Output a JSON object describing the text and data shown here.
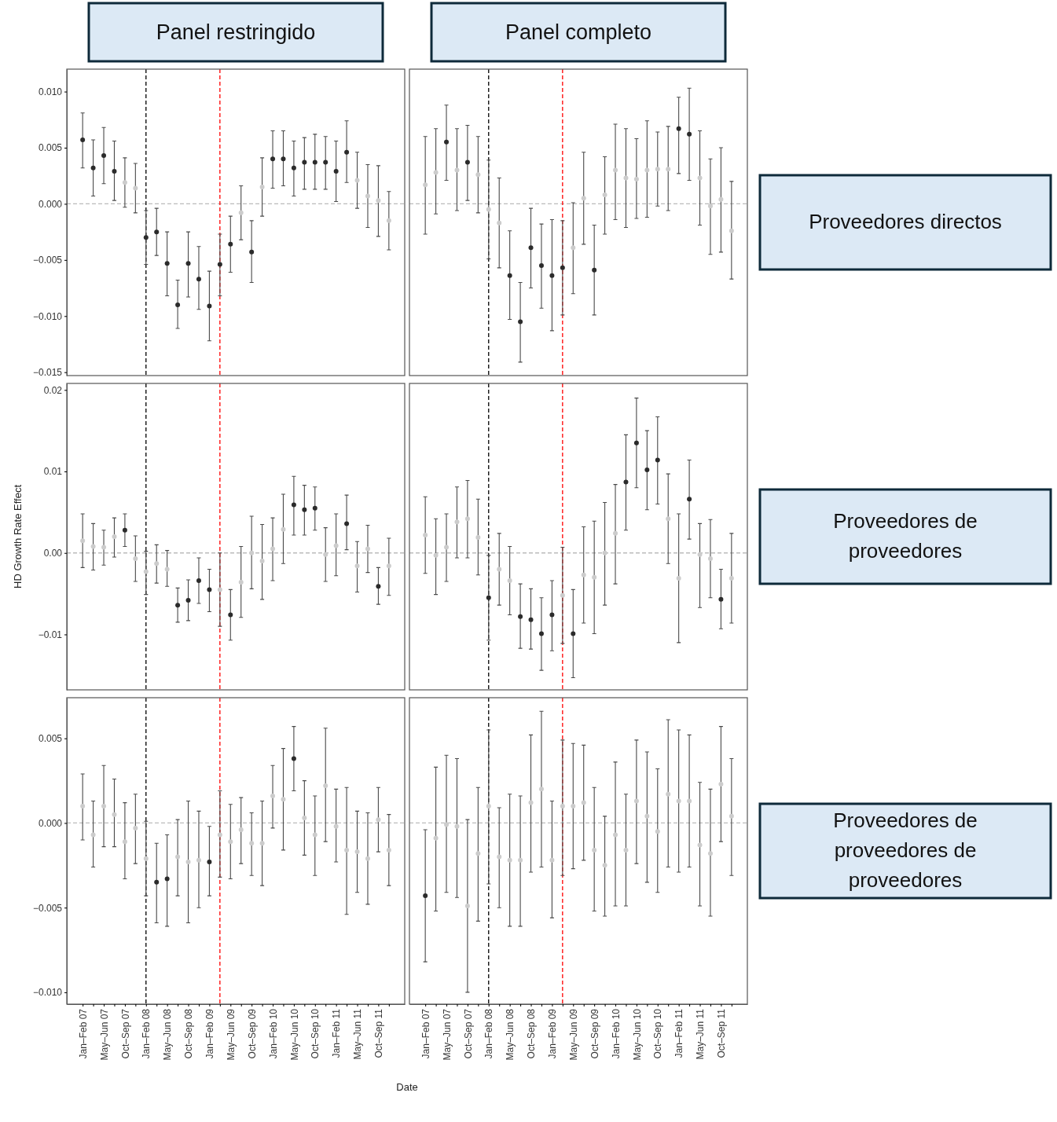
{
  "chart_data": [
    {
      "type": "scatter",
      "title": "Panel restringido",
      "marker": "circle",
      "tick_labels": "y",
      "x": [
        "2007-01",
        "2007-03",
        "2007-05",
        "2007-07",
        "2007-09",
        "2007-11",
        "2008-01",
        "2008-03",
        "2008-05",
        "2008-07",
        "2008-09",
        "2008-11",
        "2009-01",
        "2009-03",
        "2009-05",
        "2009-07",
        "2009-09",
        "2009-11",
        "2010-01",
        "2010-03",
        "2010-05",
        "2010-07",
        "2010-09",
        "2010-11",
        "2011-01",
        "2011-03",
        "2011-05",
        "2011-07",
        "2011-09",
        "2011-11"
      ],
      "xlim": [
        "2006-10",
        "2012-02"
      ],
      "ylim": [
        -0.0153,
        0.012
      ],
      "yticks": [
        {
          "value": -0.015,
          "label": "−0.015"
        },
        {
          "value": -0.01,
          "label": "−0.010"
        },
        {
          "value": -0.005,
          "label": "−0.005"
        },
        {
          "value": 0,
          "label": "0.000"
        },
        {
          "value": 0.005,
          "label": "0.005"
        },
        {
          "value": 0.01,
          "label": "0.010"
        }
      ],
      "ref_lines": [
        {
          "axis": "y",
          "value": 0,
          "color": "#bbbbbb",
          "line_style": "dashed"
        },
        {
          "axis": "x",
          "value": "2008-01",
          "color": "#000000",
          "line_style": "dashed"
        },
        {
          "axis": "x",
          "value": "2009-03",
          "color": "#ff0000",
          "line_style": "dashed"
        }
      ],
      "values": [
        0.0057,
        0.0032,
        0.0043,
        0.0029,
        0.0019,
        0.0014,
        -0.003,
        -0.0025,
        -0.0053,
        -0.009,
        -0.0053,
        -0.0067,
        -0.0091,
        -0.0054,
        -0.0036,
        -0.0008,
        -0.0043,
        0.0015,
        0.004,
        0.004,
        0.0032,
        0.0037,
        0.0037,
        0.0037,
        0.0029,
        0.0046,
        0.0021,
        0.0007,
        0.0003,
        -0.0015
      ],
      "errors": [
        [
          0.0032,
          0.0081
        ],
        [
          0.0007,
          0.0057
        ],
        [
          0.0018,
          0.0068
        ],
        [
          0.0003,
          0.0056
        ],
        [
          -0.0003,
          0.0041
        ],
        [
          -0.0008,
          0.0036
        ],
        [
          -0.0054,
          -0.0006
        ],
        [
          -0.0046,
          -0.0004
        ],
        [
          -0.0082,
          -0.0025
        ],
        [
          -0.0111,
          -0.0068
        ],
        [
          -0.0083,
          -0.0025
        ],
        [
          -0.0094,
          -0.0038
        ],
        [
          -0.0122,
          -0.006
        ],
        [
          -0.0082,
          -0.0027
        ],
        [
          -0.0061,
          -0.0011
        ],
        [
          -0.0032,
          0.0016
        ],
        [
          -0.007,
          -0.0015
        ],
        [
          -0.0011,
          0.0041
        ],
        [
          0.0014,
          0.0065
        ],
        [
          0.0016,
          0.0065
        ],
        [
          0.0007,
          0.0056
        ],
        [
          0.0013,
          0.0059
        ],
        [
          0.0013,
          0.0062
        ],
        [
          0.0013,
          0.006
        ],
        [
          0.0002,
          0.0056
        ],
        [
          0.0019,
          0.0074
        ],
        [
          -0.0004,
          0.0046
        ],
        [
          -0.0021,
          0.0035
        ],
        [
          -0.0029,
          0.0034
        ],
        [
          -0.0041,
          0.0011
        ]
      ],
      "colors": [
        "#2b2b2b",
        "#2b2b2b",
        "#2b2b2b",
        "#2b2b2b",
        "#cccccc",
        "#cccccc",
        "#2b2b2b",
        "#2b2b2b",
        "#2b2b2b",
        "#2b2b2b",
        "#2b2b2b",
        "#2b2b2b",
        "#2b2b2b",
        "#2b2b2b",
        "#2b2b2b",
        "#cccccc",
        "#2b2b2b",
        "#cccccc",
        "#2b2b2b",
        "#2b2b2b",
        "#2b2b2b",
        "#2b2b2b",
        "#2b2b2b",
        "#2b2b2b",
        "#2b2b2b",
        "#2b2b2b",
        "#cccccc",
        "#cccccc",
        "#cccccc",
        "#cccccc"
      ]
    },
    {
      "type": "scatter",
      "title": "Panel completo",
      "annotations": [
        "Proveedores directos"
      ],
      "marker": "circle",
      "tick_labels": false,
      "x": [
        "2007-01",
        "2007-03",
        "2007-05",
        "2007-07",
        "2007-09",
        "2007-11",
        "2008-01",
        "2008-03",
        "2008-05",
        "2008-07",
        "2008-09",
        "2008-11",
        "2009-01",
        "2009-03",
        "2009-05",
        "2009-07",
        "2009-09",
        "2009-11",
        "2010-01",
        "2010-03",
        "2010-05",
        "2010-07",
        "2010-09",
        "2010-11",
        "2011-01",
        "2011-03",
        "2011-05",
        "2011-07",
        "2011-09",
        "2011-11"
      ],
      "xlim": [
        "2006-10",
        "2012-02"
      ],
      "ylim": [
        -0.0153,
        0.012
      ],
      "ref_lines": [
        {
          "axis": "y",
          "value": 0,
          "color": "#bbbbbb",
          "line_style": "dashed"
        },
        {
          "axis": "x",
          "value": "2008-01",
          "color": "#000000",
          "line_style": "dashed"
        },
        {
          "axis": "x",
          "value": "2009-03",
          "color": "#ff0000",
          "line_style": "dashed"
        }
      ],
      "values": [
        0.0017,
        0.0028,
        0.0055,
        0.003,
        0.0037,
        0.0026,
        -0.0005,
        -0.0017,
        -0.0064,
        -0.0105,
        -0.0039,
        -0.0055,
        -0.0064,
        -0.0057,
        -0.0039,
        0.0005,
        -0.0059,
        0.0008,
        0.003,
        0.0023,
        0.0022,
        0.003,
        0.0031,
        0.0031,
        0.0067,
        0.0062,
        0.0023,
        -0.0002,
        0.0004,
        -0.0024
      ],
      "errors": [
        [
          -0.0027,
          0.006
        ],
        [
          -0.0009,
          0.0067
        ],
        [
          0.0021,
          0.0088
        ],
        [
          -0.0006,
          0.0067
        ],
        [
          0.0003,
          0.007
        ],
        [
          -0.0008,
          0.006
        ],
        [
          -0.0049,
          0.0039
        ],
        [
          -0.0057,
          0.0023
        ],
        [
          -0.0103,
          -0.0024
        ],
        [
          -0.0141,
          -0.007
        ],
        [
          -0.0075,
          -0.0004
        ],
        [
          -0.0093,
          -0.0018
        ],
        [
          -0.0113,
          -0.0014
        ],
        [
          -0.0099,
          -0.0015
        ],
        [
          -0.008,
          0.0001
        ],
        [
          -0.0036,
          0.0046
        ],
        [
          -0.0099,
          -0.0019
        ],
        [
          -0.0027,
          0.0042
        ],
        [
          -0.0014,
          0.0071
        ],
        [
          -0.0021,
          0.0067
        ],
        [
          -0.0013,
          0.0058
        ],
        [
          -0.0012,
          0.0074
        ],
        [
          -0.0002,
          0.0064
        ],
        [
          -0.0006,
          0.0069
        ],
        [
          0.0027,
          0.0095
        ],
        [
          0.0021,
          0.0103
        ],
        [
          -0.0019,
          0.0065
        ],
        [
          -0.0045,
          0.004
        ],
        [
          -0.0043,
          0.005
        ],
        [
          -0.0067,
          0.002
        ]
      ],
      "colors": [
        "#cccccc",
        "#cccccc",
        "#2b2b2b",
        "#cccccc",
        "#2b2b2b",
        "#cccccc",
        "#cccccc",
        "#cccccc",
        "#2b2b2b",
        "#2b2b2b",
        "#2b2b2b",
        "#2b2b2b",
        "#2b2b2b",
        "#2b2b2b",
        "#cccccc",
        "#cccccc",
        "#2b2b2b",
        "#cccccc",
        "#cccccc",
        "#cccccc",
        "#cccccc",
        "#cccccc",
        "#cccccc",
        "#cccccc",
        "#2b2b2b",
        "#2b2b2b",
        "#cccccc",
        "#cccccc",
        "#cccccc",
        "#cccccc"
      ]
    },
    {
      "type": "scatter",
      "ylabel": "HD Growth Rate Effect",
      "marker": "circle",
      "tick_labels": "y",
      "x": [
        "2007-01",
        "2007-03",
        "2007-05",
        "2007-07",
        "2007-09",
        "2007-11",
        "2008-01",
        "2008-03",
        "2008-05",
        "2008-07",
        "2008-09",
        "2008-11",
        "2009-01",
        "2009-03",
        "2009-05",
        "2009-07",
        "2009-09",
        "2009-11",
        "2010-01",
        "2010-03",
        "2010-05",
        "2010-07",
        "2010-09",
        "2010-11",
        "2011-01",
        "2011-03",
        "2011-05",
        "2011-07",
        "2011-09",
        "2011-11"
      ],
      "xlim": [
        "2006-10",
        "2012-02"
      ],
      "ylim": [
        -0.0168,
        0.0208
      ],
      "yticks": [
        {
          "value": -0.01,
          "label": "−0.01"
        },
        {
          "value": 0,
          "label": "0.00"
        },
        {
          "value": 0.01,
          "label": "0.01"
        },
        {
          "value": 0.02,
          "label": "0.02"
        }
      ],
      "ref_lines": [
        {
          "axis": "y",
          "value": 0,
          "color": "#bbbbbb",
          "line_style": "dashed"
        },
        {
          "axis": "x",
          "value": "2008-01",
          "color": "#000000",
          "line_style": "dashed"
        },
        {
          "axis": "x",
          "value": "2009-03",
          "color": "#ff0000",
          "line_style": "dashed"
        }
      ],
      "values": [
        0.0015,
        0.0008,
        0.0007,
        0.002,
        0.0028,
        -0.0007,
        -0.0023,
        -0.0013,
        -0.002,
        -0.0064,
        -0.0058,
        -0.0034,
        -0.0045,
        -0.0045,
        -0.0076,
        -0.0036,
        0,
        -0.001,
        0.0005,
        0.0029,
        0.0059,
        0.0053,
        0.0055,
        -0.0002,
        0.0009,
        0.0036,
        -0.0016,
        0.0005,
        -0.0041,
        -0.0016
      ],
      "errors": [
        [
          -0.0018,
          0.0048
        ],
        [
          -0.0021,
          0.0036
        ],
        [
          -0.0015,
          0.0028
        ],
        [
          -0.0005,
          0.0043
        ],
        [
          0.0008,
          0.0048
        ],
        [
          -0.0035,
          0.0021
        ],
        [
          -0.0051,
          0.0002
        ],
        [
          -0.0037,
          0.001
        ],
        [
          -0.0041,
          0.0003
        ],
        [
          -0.0085,
          -0.0043
        ],
        [
          -0.0083,
          -0.0033
        ],
        [
          -0.0062,
          -0.0006
        ],
        [
          -0.0072,
          -0.002
        ],
        [
          -0.009,
          0
        ],
        [
          -0.0107,
          -0.0045
        ],
        [
          -0.0079,
          0.0008
        ],
        [
          -0.0044,
          0.0045
        ],
        [
          -0.0057,
          0.0035
        ],
        [
          -0.0034,
          0.0043
        ],
        [
          -0.0013,
          0.0072
        ],
        [
          0.0022,
          0.0094
        ],
        [
          0.0022,
          0.0083
        ],
        [
          0.0028,
          0.0081
        ],
        [
          -0.0035,
          0.0031
        ],
        [
          -0.0028,
          0.0048
        ],
        [
          0.0004,
          0.0071
        ],
        [
          -0.0048,
          0.0014
        ],
        [
          -0.0024,
          0.0034
        ],
        [
          -0.0063,
          -0.0018
        ],
        [
          -0.0052,
          0.0018
        ]
      ],
      "colors": [
        "#cccccc",
        "#cccccc",
        "#cccccc",
        "#cccccc",
        "#2b2b2b",
        "#cccccc",
        "#cccccc",
        "#cccccc",
        "#cccccc",
        "#2b2b2b",
        "#2b2b2b",
        "#2b2b2b",
        "#2b2b2b",
        "#cccccc",
        "#2b2b2b",
        "#cccccc",
        "#cccccc",
        "#cccccc",
        "#cccccc",
        "#cccccc",
        "#2b2b2b",
        "#2b2b2b",
        "#2b2b2b",
        "#cccccc",
        "#cccccc",
        "#2b2b2b",
        "#cccccc",
        "#cccccc",
        "#2b2b2b",
        "#cccccc"
      ]
    },
    {
      "type": "scatter",
      "annotations": [
        "Proveedores de proveedores"
      ],
      "marker": "circle",
      "tick_labels": false,
      "x": [
        "2007-01",
        "2007-03",
        "2007-05",
        "2007-07",
        "2007-09",
        "2007-11",
        "2008-01",
        "2008-03",
        "2008-05",
        "2008-07",
        "2008-09",
        "2008-11",
        "2009-01",
        "2009-03",
        "2009-05",
        "2009-07",
        "2009-09",
        "2009-11",
        "2010-01",
        "2010-03",
        "2010-05",
        "2010-07",
        "2010-09",
        "2010-11",
        "2011-01",
        "2011-03",
        "2011-05",
        "2011-07",
        "2011-09",
        "2011-11"
      ],
      "xlim": [
        "2006-10",
        "2012-02"
      ],
      "ylim": [
        -0.0168,
        0.0208
      ],
      "ref_lines": [
        {
          "axis": "y",
          "value": 0,
          "color": "#bbbbbb",
          "line_style": "dashed"
        },
        {
          "axis": "x",
          "value": "2008-01",
          "color": "#000000",
          "line_style": "dashed"
        },
        {
          "axis": "x",
          "value": "2009-03",
          "color": "#ff0000",
          "line_style": "dashed"
        }
      ],
      "values": [
        0.0022,
        -0.0003,
        0.0007,
        0.0038,
        0.0042,
        0.0019,
        -0.0055,
        -0.002,
        -0.0034,
        -0.0078,
        -0.0082,
        -0.0099,
        -0.0076,
        -0.0052,
        -0.0099,
        -0.0027,
        -0.003,
        0,
        0.0024,
        0.0087,
        0.0135,
        0.0102,
        0.0114,
        0.0042,
        -0.0031,
        0.0066,
        -0.0002,
        -0.0007,
        -0.0057,
        -0.0031
      ],
      "errors": [
        [
          -0.0025,
          0.0069
        ],
        [
          -0.0051,
          0.0042
        ],
        [
          -0.0035,
          0.0048
        ],
        [
          -0.0006,
          0.0081
        ],
        [
          -0.0006,
          0.0089
        ],
        [
          -0.0027,
          0.0066
        ],
        [
          -0.0107,
          -0.0003
        ],
        [
          -0.0064,
          0.0024
        ],
        [
          -0.0076,
          0.0008
        ],
        [
          -0.0117,
          -0.0038
        ],
        [
          -0.0118,
          -0.0044
        ],
        [
          -0.0144,
          -0.0055
        ],
        [
          -0.012,
          -0.0034
        ],
        [
          -0.0111,
          0.0007
        ],
        [
          -0.0153,
          -0.0045
        ],
        [
          -0.0086,
          0.0032
        ],
        [
          -0.0099,
          0.0039
        ],
        [
          -0.0064,
          0.0062
        ],
        [
          -0.0038,
          0.0084
        ],
        [
          0.0028,
          0.0145
        ],
        [
          0.008,
          0.019
        ],
        [
          0.0053,
          0.015
        ],
        [
          0.006,
          0.0167
        ],
        [
          -0.0013,
          0.0097
        ],
        [
          -0.011,
          0.0048
        ],
        [
          0.0017,
          0.0114
        ],
        [
          -0.0067,
          0.0036
        ],
        [
          -0.0055,
          0.0041
        ],
        [
          -0.0093,
          -0.002
        ],
        [
          -0.0086,
          0.0024
        ]
      ],
      "colors": [
        "#cccccc",
        "#cccccc",
        "#cccccc",
        "#cccccc",
        "#cccccc",
        "#cccccc",
        "#2b2b2b",
        "#cccccc",
        "#cccccc",
        "#2b2b2b",
        "#2b2b2b",
        "#2b2b2b",
        "#2b2b2b",
        "#cccccc",
        "#2b2b2b",
        "#cccccc",
        "#cccccc",
        "#cccccc",
        "#cccccc",
        "#2b2b2b",
        "#2b2b2b",
        "#2b2b2b",
        "#2b2b2b",
        "#cccccc",
        "#cccccc",
        "#2b2b2b",
        "#cccccc",
        "#cccccc",
        "#2b2b2b",
        "#cccccc"
      ]
    },
    {
      "type": "scatter",
      "xlabel": "Date",
      "marker": "circle",
      "x": [
        "2007-01",
        "2007-03",
        "2007-05",
        "2007-07",
        "2007-09",
        "2007-11",
        "2008-01",
        "2008-03",
        "2008-05",
        "2008-07",
        "2008-09",
        "2008-11",
        "2009-01",
        "2009-03",
        "2009-05",
        "2009-07",
        "2009-09",
        "2009-11",
        "2010-01",
        "2010-03",
        "2010-05",
        "2010-07",
        "2010-09",
        "2010-11",
        "2011-01",
        "2011-03",
        "2011-05",
        "2011-07",
        "2011-09",
        "2011-11"
      ],
      "xlim": [
        "2006-10",
        "2012-02"
      ],
      "ylim": [
        -0.0107,
        0.0074
      ],
      "xticks": [
        {
          "value": "2007-01",
          "label": "Jan–Feb 07"
        },
        {
          "value": "2007-03",
          "label": null
        },
        {
          "value": "2007-05",
          "label": "May–Jun 07"
        },
        {
          "value": "2007-07",
          "label": null
        },
        {
          "value": "2007-09",
          "label": "Oct–Sep 07"
        },
        {
          "value": "2007-11",
          "label": null
        },
        {
          "value": "2008-01",
          "label": "Jan–Feb 08"
        },
        {
          "value": "2008-03",
          "label": null
        },
        {
          "value": "2008-05",
          "label": "May–Jun 08"
        },
        {
          "value": "2008-07",
          "label": null
        },
        {
          "value": "2008-09",
          "label": "Oct–Sep 08"
        },
        {
          "value": "2008-11",
          "label": null
        },
        {
          "value": "2009-01",
          "label": "Jan–Feb 09"
        },
        {
          "value": "2009-03",
          "label": null
        },
        {
          "value": "2009-05",
          "label": "May–Jun 09"
        },
        {
          "value": "2009-07",
          "label": null
        },
        {
          "value": "2009-09",
          "label": "Oct–Sep 09"
        },
        {
          "value": "2009-11",
          "label": null
        },
        {
          "value": "2010-01",
          "label": "Jan–Feb 10"
        },
        {
          "value": "2010-03",
          "label": null
        },
        {
          "value": "2010-05",
          "label": "May–Jun 10"
        },
        {
          "value": "2010-07",
          "label": null
        },
        {
          "value": "2010-09",
          "label": "Oct–Sep 10"
        },
        {
          "value": "2010-11",
          "label": null
        },
        {
          "value": "2011-01",
          "label": "Jan–Feb 11"
        },
        {
          "value": "2011-03",
          "label": null
        },
        {
          "value": "2011-05",
          "label": "May–Jun 11"
        },
        {
          "value": "2011-07",
          "label": null
        },
        {
          "value": "2011-09",
          "label": "Oct–Sep 11"
        },
        {
          "value": "2011-11",
          "label": null
        }
      ],
      "yticks": [
        {
          "value": -0.01,
          "label": "−0.010"
        },
        {
          "value": -0.005,
          "label": "−0.005"
        },
        {
          "value": 0,
          "label": "0.000"
        },
        {
          "value": 0.005,
          "label": "0.005"
        }
      ],
      "ref_lines": [
        {
          "axis": "y",
          "value": 0,
          "color": "#bbbbbb",
          "line_style": "dashed"
        },
        {
          "axis": "x",
          "value": "2008-01",
          "color": "#000000",
          "line_style": "dashed"
        },
        {
          "axis": "x",
          "value": "2009-03",
          "color": "#ff0000",
          "line_style": "dashed"
        }
      ],
      "values": [
        0.001,
        -0.0007,
        0.001,
        0.0005,
        -0.0011,
        -0.0003,
        -0.0021,
        -0.0035,
        -0.0033,
        -0.002,
        -0.0023,
        -0.0022,
        -0.0023,
        -0.0007,
        -0.0011,
        -0.0004,
        -0.0012,
        -0.0012,
        0.0016,
        0.0014,
        0.0038,
        0.0003,
        -0.0007,
        0.0022,
        -0.0002,
        -0.0016,
        -0.0017,
        -0.0021,
        0.0002,
        -0.0016
      ],
      "errors": [
        [
          -0.001,
          0.0029
        ],
        [
          -0.0026,
          0.0013
        ],
        [
          -0.0014,
          0.0034
        ],
        [
          -0.0014,
          0.0026
        ],
        [
          -0.0033,
          0.0012
        ],
        [
          -0.0024,
          0.0017
        ],
        [
          -0.0043,
          0.0001
        ],
        [
          -0.0059,
          -0.0012
        ],
        [
          -0.0061,
          -0.0007
        ],
        [
          -0.0043,
          0.0002
        ],
        [
          -0.0059,
          0.0013
        ],
        [
          -0.005,
          0.0007
        ],
        [
          -0.0043,
          -0.0002
        ],
        [
          -0.0032,
          0.0019
        ],
        [
          -0.0033,
          0.0011
        ],
        [
          -0.0024,
          0.0015
        ],
        [
          -0.0031,
          0.0006
        ],
        [
          -0.0037,
          0.0013
        ],
        [
          -0.0003,
          0.0034
        ],
        [
          -0.0016,
          0.0044
        ],
        [
          0.0019,
          0.0057
        ],
        [
          -0.0019,
          0.0025
        ],
        [
          -0.0031,
          0.0016
        ],
        [
          -0.0011,
          0.0056
        ],
        [
          -0.0023,
          0.002
        ],
        [
          -0.0054,
          0.0021
        ],
        [
          -0.0041,
          0.0007
        ],
        [
          -0.0048,
          0.0006
        ],
        [
          -0.0017,
          0.0021
        ],
        [
          -0.0037,
          0.0005
        ]
      ],
      "colors": [
        "#cccccc",
        "#cccccc",
        "#cccccc",
        "#cccccc",
        "#cccccc",
        "#cccccc",
        "#cccccc",
        "#2b2b2b",
        "#2b2b2b",
        "#cccccc",
        "#cccccc",
        "#cccccc",
        "#2b2b2b",
        "#cccccc",
        "#cccccc",
        "#cccccc",
        "#cccccc",
        "#cccccc",
        "#cccccc",
        "#cccccc",
        "#2b2b2b",
        "#cccccc",
        "#cccccc",
        "#cccccc",
        "#cccccc",
        "#cccccc",
        "#cccccc",
        "#cccccc",
        "#cccccc",
        "#cccccc"
      ]
    },
    {
      "type": "scatter",
      "annotations": [
        "Proveedores de proveedores de proveedores"
      ],
      "marker": "circle",
      "tick_labels": "x",
      "x": [
        "2007-01",
        "2007-03",
        "2007-05",
        "2007-07",
        "2007-09",
        "2007-11",
        "2008-01",
        "2008-03",
        "2008-05",
        "2008-07",
        "2008-09",
        "2008-11",
        "2009-01",
        "2009-03",
        "2009-05",
        "2009-07",
        "2009-09",
        "2009-11",
        "2010-01",
        "2010-03",
        "2010-05",
        "2010-07",
        "2010-09",
        "2010-11",
        "2011-01",
        "2011-03",
        "2011-05",
        "2011-07",
        "2011-09",
        "2011-11"
      ],
      "xlim": [
        "2006-10",
        "2012-02"
      ],
      "ylim": [
        -0.0107,
        0.0074
      ],
      "xticks": [
        {
          "value": "2007-01",
          "label": "Jan–Feb 07"
        },
        {
          "value": "2007-03",
          "label": null
        },
        {
          "value": "2007-05",
          "label": "May–Jun 07"
        },
        {
          "value": "2007-07",
          "label": null
        },
        {
          "value": "2007-09",
          "label": "Oct–Sep 07"
        },
        {
          "value": "2007-11",
          "label": null
        },
        {
          "value": "2008-01",
          "label": "Jan–Feb 08"
        },
        {
          "value": "2008-03",
          "label": null
        },
        {
          "value": "2008-05",
          "label": "May–Jun 08"
        },
        {
          "value": "2008-07",
          "label": null
        },
        {
          "value": "2008-09",
          "label": "Oct–Sep 08"
        },
        {
          "value": "2008-11",
          "label": null
        },
        {
          "value": "2009-01",
          "label": "Jan–Feb 09"
        },
        {
          "value": "2009-03",
          "label": null
        },
        {
          "value": "2009-05",
          "label": "May–Jun 09"
        },
        {
          "value": "2009-07",
          "label": null
        },
        {
          "value": "2009-09",
          "label": "Oct–Sep 09"
        },
        {
          "value": "2009-11",
          "label": null
        },
        {
          "value": "2010-01",
          "label": "Jan–Feb 10"
        },
        {
          "value": "2010-03",
          "label": null
        },
        {
          "value": "2010-05",
          "label": "May–Jun 10"
        },
        {
          "value": "2010-07",
          "label": null
        },
        {
          "value": "2010-09",
          "label": "Oct–Sep 10"
        },
        {
          "value": "2010-11",
          "label": null
        },
        {
          "value": "2011-01",
          "label": "Jan–Feb 11"
        },
        {
          "value": "2011-03",
          "label": null
        },
        {
          "value": "2011-05",
          "label": "May–Jun 11"
        },
        {
          "value": "2011-07",
          "label": null
        },
        {
          "value": "2011-09",
          "label": "Oct–Sep 11"
        },
        {
          "value": "2011-11",
          "label": null
        }
      ],
      "ref_lines": [
        {
          "axis": "y",
          "value": 0,
          "color": "#bbbbbb",
          "line_style": "dashed"
        },
        {
          "axis": "x",
          "value": "2008-01",
          "color": "#000000",
          "line_style": "dashed"
        },
        {
          "axis": "x",
          "value": "2009-03",
          "color": "#ff0000",
          "line_style": "dashed"
        }
      ],
      "values": [
        -0.0043,
        -0.0009,
        -0.0001,
        -0.0002,
        -0.0049,
        -0.0018,
        0.001,
        -0.002,
        -0.0022,
        -0.0022,
        0.0012,
        0.002,
        -0.0022,
        0.001,
        0.001,
        0.0012,
        -0.0016,
        -0.0025,
        -0.0007,
        -0.0016,
        0.0013,
        0.0004,
        -0.0005,
        0.0017,
        0.0013,
        0.0013,
        -0.0013,
        -0.0018,
        0.0023,
        0.0004
      ],
      "errors": [
        [
          -0.0082,
          -0.0004
        ],
        [
          -0.0052,
          0.0033
        ],
        [
          -0.0041,
          0.004
        ],
        [
          -0.0044,
          0.0038
        ],
        [
          -0.01,
          0.0002
        ],
        [
          -0.0058,
          0.0021
        ],
        [
          -0.0036,
          0.0055
        ],
        [
          -0.005,
          0.0009
        ],
        [
          -0.0061,
          0.0017
        ],
        [
          -0.0061,
          0.0016
        ],
        [
          -0.0029,
          0.0052
        ],
        [
          -0.0026,
          0.0066
        ],
        [
          -0.0056,
          0.0013
        ],
        [
          -0.0031,
          0.0049
        ],
        [
          -0.0027,
          0.0047
        ],
        [
          -0.0022,
          0.0046
        ],
        [
          -0.0052,
          0.0021
        ],
        [
          -0.0055,
          0.0004
        ],
        [
          -0.0049,
          0.0036
        ],
        [
          -0.0049,
          0.0017
        ],
        [
          -0.0024,
          0.0049
        ],
        [
          -0.0035,
          0.0042
        ],
        [
          -0.0041,
          0.0032
        ],
        [
          -0.0026,
          0.0061
        ],
        [
          -0.0029,
          0.0055
        ],
        [
          -0.0026,
          0.0052
        ],
        [
          -0.0049,
          0.0024
        ],
        [
          -0.0055,
          0.002
        ],
        [
          -0.0011,
          0.0057
        ],
        [
          -0.0031,
          0.0038
        ]
      ],
      "colors": [
        "#2b2b2b",
        "#cccccc",
        "#cccccc",
        "#cccccc",
        "#cccccc",
        "#cccccc",
        "#cccccc",
        "#cccccc",
        "#cccccc",
        "#cccccc",
        "#cccccc",
        "#cccccc",
        "#cccccc",
        "#cccccc",
        "#cccccc",
        "#cccccc",
        "#cccccc",
        "#cccccc",
        "#cccccc",
        "#cccccc",
        "#cccccc",
        "#cccccc",
        "#cccccc",
        "#cccccc",
        "#cccccc",
        "#cccccc",
        "#cccccc",
        "#cccccc",
        "#cccccc",
        "#cccccc"
      ]
    }
  ]
}
